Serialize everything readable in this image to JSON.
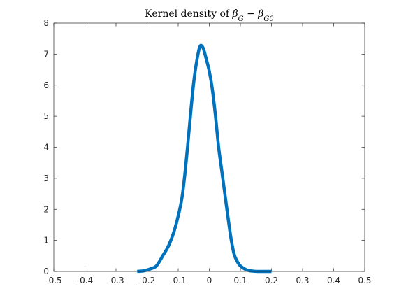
{
  "chart_data": {
    "type": "line",
    "title": "Kernel density of β̂G − βG0",
    "title_parts": {
      "prefix": "Kernel density of ",
      "beta_hat": "β̂",
      "sub_hat": "G",
      "minus": " − ",
      "beta": "β",
      "sub_true": "G0"
    },
    "xlabel": "",
    "ylabel": "",
    "xlim": [
      -0.5,
      0.5
    ],
    "ylim": [
      0,
      8
    ],
    "xticks": [
      -0.5,
      -0.4,
      -0.3,
      -0.2,
      -0.1,
      0,
      0.1,
      0.2,
      0.3,
      0.4,
      0.5
    ],
    "xtick_labels": [
      "-0.5",
      "-0.4",
      "-0.3",
      "-0.2",
      "-0.1",
      "0",
      "0.1",
      "0.2",
      "0.3",
      "0.4",
      "0.5"
    ],
    "yticks": [
      0,
      1,
      2,
      3,
      4,
      5,
      6,
      7,
      8
    ],
    "ytick_labels": [
      "0",
      "1",
      "2",
      "3",
      "4",
      "5",
      "6",
      "7",
      "8"
    ],
    "grid": false,
    "line_color": "#0072BD",
    "series": [
      {
        "x": [
          -0.232,
          -0.21,
          -0.19,
          -0.17,
          -0.15,
          -0.13,
          -0.11,
          -0.09,
          -0.08,
          -0.07,
          -0.06,
          -0.05,
          -0.04,
          -0.03,
          -0.02,
          -0.01,
          0.0,
          0.01,
          0.02,
          0.03,
          0.04,
          0.05,
          0.06,
          0.07,
          0.08,
          0.09,
          0.1,
          0.12,
          0.14,
          0.16,
          0.18,
          0.2
        ],
        "y": [
          0.0,
          0.02,
          0.08,
          0.18,
          0.5,
          0.85,
          1.4,
          2.25,
          3.0,
          4.0,
          5.1,
          6.1,
          6.8,
          7.25,
          7.2,
          6.85,
          6.45,
          5.85,
          5.0,
          4.0,
          3.25,
          2.5,
          1.75,
          1.05,
          0.55,
          0.32,
          0.18,
          0.05,
          0.01,
          0.0,
          0.0,
          0.0
        ]
      }
    ]
  }
}
